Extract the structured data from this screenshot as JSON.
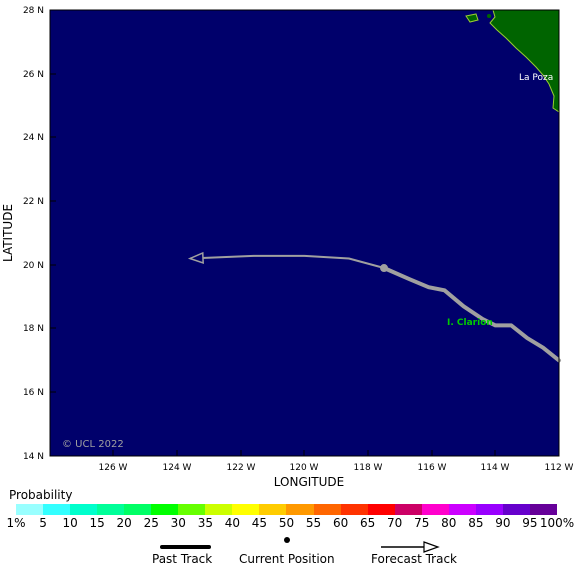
{
  "map": {
    "lat_ticks": [
      "28 N",
      "26 N",
      "24 N",
      "22 N",
      "20 N",
      "18 N",
      "16 N",
      "14 N"
    ],
    "lon_ticks": [
      "126 W",
      "124 W",
      "122 W",
      "120 W",
      "118 W",
      "116 W",
      "114 W",
      "112 W"
    ],
    "x_axis_title": "LONGITUDE",
    "y_axis_title": "LATITUDE",
    "copyright": "© UCL 2022",
    "place_labels": [
      "La Poza",
      "I. Clarion"
    ],
    "ocean_color": "#00006b",
    "land_color": "#006400",
    "track_color": "#a0a0a0",
    "lat_range": [
      14,
      28
    ],
    "lon_range": [
      -128,
      -112
    ],
    "past_track": [
      [
        -112,
        17.0
      ],
      [
        -112.5,
        17.4
      ],
      [
        -113.0,
        17.7
      ],
      [
        -113.5,
        18.1
      ],
      [
        -114.0,
        18.1
      ],
      [
        -114.4,
        18.3
      ],
      [
        -115.0,
        18.7
      ],
      [
        -115.6,
        19.2
      ],
      [
        -116.1,
        19.3
      ],
      [
        -116.7,
        19.55
      ],
      [
        -117.5,
        19.9
      ]
    ],
    "current_position": [
      -117.5,
      19.9
    ],
    "forecast_track": [
      [
        -117.5,
        19.9
      ],
      [
        -118.6,
        20.2
      ],
      [
        -120.0,
        20.28
      ],
      [
        -121.6,
        20.28
      ],
      [
        -123.6,
        20.2
      ]
    ]
  },
  "probability": {
    "title": "Probability",
    "labels": [
      "1%",
      "5",
      "10",
      "15",
      "20",
      "25",
      "30",
      "35",
      "40",
      "45",
      "50",
      "55",
      "60",
      "65",
      "70",
      "75",
      "80",
      "85",
      "90",
      "95",
      "100%"
    ],
    "colors": [
      "#99ffff",
      "#33ffff",
      "#00ffcc",
      "#00ff99",
      "#00ff66",
      "#00ff00",
      "#66ff00",
      "#ccff00",
      "#ffff00",
      "#ffcc00",
      "#ff9900",
      "#ff6600",
      "#ff3300",
      "#ff0000",
      "#cc0066",
      "#ff00cc",
      "#cc00ff",
      "#9900ff",
      "#6600cc",
      "#660099"
    ]
  },
  "legend": {
    "past_track": "Past Track",
    "current_position": "Current Position",
    "forecast_track": "Forecast Track"
  }
}
